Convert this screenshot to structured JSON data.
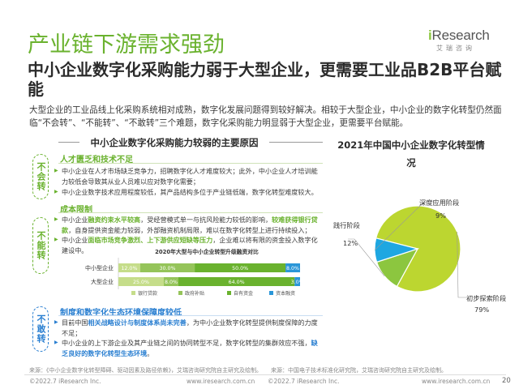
{
  "logo": {
    "accent": "i",
    "word": "Research",
    "cn": "艾瑞咨询"
  },
  "page_title": "产业链下游需求强劲",
  "subtitle": "中小企业数字化采购能力弱于大型企业，更需要工业品B2B平台赋能",
  "intro": "大型企业的工业品线上化采购系统相对成熟，数字化发展问题得到较好解决。相较于大型企业，中小企业的数字化转型仍然面临“不会转”、“不能转”、“不敢转”三个难题，数字化采购能力明显弱于大型企业，更需要平台赋能。",
  "left_heading": "中小企业数字化采购能力较弱的主要原因",
  "right_heading": "2021年中国中小企业数字化转型情况",
  "sections": [
    {
      "side": "不会转",
      "title": "人才匮乏和技术不足",
      "bullets": [
        {
          "text": "中小企业在人才市场缺乏竞争力，招聘数字化人才难度较大；此外，中小企业人才培训能力较低会导致其从业人员难以应对数字化需要；"
        },
        {
          "text": "中小企业数字技术应用程度较低，其产品结构多位于产业链低端，数字化转型难度较大。"
        }
      ]
    },
    {
      "side": "不能转",
      "title": "成本限制",
      "bullets": [
        {
          "p1": "中小企业",
          "h1": "融资约束水平较高",
          "p2": "，受经营模式单一与抗风险能力较低的影响，",
          "h2": "较难获得银行贷款",
          "p3": "，自身提供资金能力较弱，外部融资机制局限，难以在数字化转型上进行持续投入；"
        },
        {
          "p1": "中小企业",
          "h1": "面临市场竞争激烈、上下游供应短缺等压力",
          "p2": "，企业难以将有限的资金投入数字化建设中。"
        }
      ]
    },
    {
      "side": "不敢转",
      "title": "制度和数字化生态环境保障度较低",
      "bullets": [
        {
          "p1": "目前中国",
          "h1": "相关战略设计与制度体系尚未完善",
          "p2": "，为中小企业数字化转型提供制度保障的力度不足；"
        },
        {
          "p1": "中小企业的上下游企业及其产业链之间的协同转型不足，数字化转型的集群效应不强，",
          "h1": "缺乏良好的数字化转型生态环境",
          "p2": "。"
        }
      ]
    }
  ],
  "chart_data": [
    {
      "type": "bar",
      "orientation": "horizontal",
      "stacked": true,
      "title": "2020年大型与中小企业转型升级融资对比",
      "categories": [
        "中小型企业",
        "大型企业"
      ],
      "series": [
        {
          "name": "银行贷款",
          "values": [
            12.0,
            25.0
          ],
          "color": "#c5dd8a"
        },
        {
          "name": "政府补贴",
          "values": [
            30.0,
            8.0
          ],
          "color": "#95c45a"
        },
        {
          "name": "自有资金",
          "values": [
            50.0,
            64.0
          ],
          "color": "#6ab22e"
        },
        {
          "name": "资本融资",
          "values": [
            8.0,
            3.0
          ],
          "color": "#2a96d8"
        }
      ],
      "value_labels": [
        [
          "12.0%",
          "30.0%",
          "50.0%",
          "8.0%"
        ],
        [
          "25.0%",
          "8.0%",
          "64.0%",
          "3.0%"
        ]
      ],
      "xlim": [
        0,
        100
      ],
      "legend": "bottom"
    },
    {
      "type": "pie",
      "title": "2021年中国中小企业数字化转型情况",
      "labels": [
        "初步探索阶段",
        "践行阶段",
        "深度应用阶段"
      ],
      "values": [
        79,
        12,
        9
      ],
      "value_labels": [
        "79%",
        "12%",
        "9%"
      ],
      "colors": [
        "#bcd630",
        "#8cc63f",
        "#1ea7e1"
      ]
    }
  ],
  "sources": {
    "left": "来源：《中小企业数字化转型障碍、驱动因素及路径依赖》，艾瑞咨询研究院自主研究及绘制。",
    "right": "来源：中国电子技术标准化研究院，艾瑞咨询研究院自主研究及绘制。"
  },
  "footer": {
    "left_copyright": "©2022.7 iResearch Inc.",
    "left_url": "www.iresearch.com.cn",
    "right_copyright": "©2022.7 iResearch Inc.",
    "right_url": "www.iresearch.com.cn",
    "page": "20"
  }
}
